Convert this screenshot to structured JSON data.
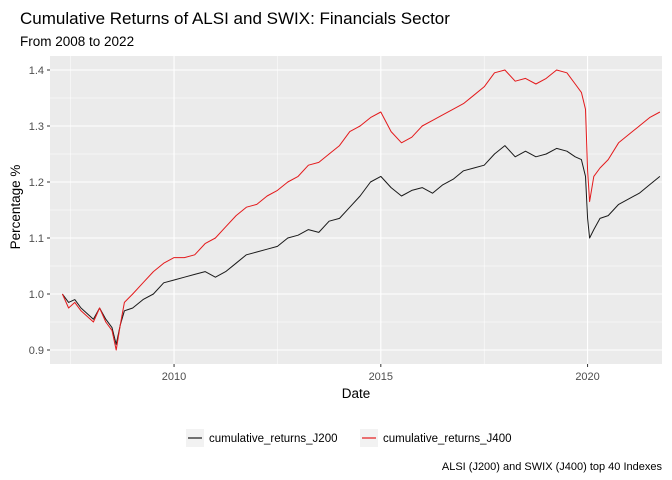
{
  "chart_data": {
    "type": "line",
    "title": "Cumulative Returns of ALSI and SWIX: Financials Sector",
    "subtitle": "From 2008 to 2022",
    "xlabel": "Date",
    "ylabel": "Percentage %",
    "caption": "ALSI (J200) and SWIX (J400) top 40 Indexes",
    "x_ticks": [
      2010,
      2015,
      2020
    ],
    "y_ticks": [
      0.9,
      1.0,
      1.1,
      1.2,
      1.3,
      1.4
    ],
    "xlim": [
      2007.0,
      2021.8
    ],
    "ylim": [
      0.875,
      1.425
    ],
    "grid": true,
    "legend_position": "bottom",
    "colors": {
      "panel": "#ebebeb",
      "grid": "#ffffff",
      "J200": "#1a1a1a",
      "J400": "#e41a1c"
    },
    "series": [
      {
        "name": "cumulative_returns_J200",
        "color": "#1a1a1a",
        "x": [
          2007.3,
          2007.45,
          2007.6,
          2007.75,
          2007.9,
          2008.05,
          2008.2,
          2008.35,
          2008.5,
          2008.6,
          2008.7,
          2008.8,
          2009.0,
          2009.25,
          2009.5,
          2009.75,
          2010.0,
          2010.25,
          2010.5,
          2010.75,
          2011.0,
          2011.25,
          2011.5,
          2011.75,
          2012.0,
          2012.25,
          2012.5,
          2012.75,
          2013.0,
          2013.25,
          2013.5,
          2013.75,
          2014.0,
          2014.25,
          2014.5,
          2014.75,
          2015.0,
          2015.25,
          2015.5,
          2015.75,
          2016.0,
          2016.25,
          2016.5,
          2016.75,
          2017.0,
          2017.25,
          2017.5,
          2017.75,
          2018.0,
          2018.25,
          2018.5,
          2018.75,
          2019.0,
          2019.25,
          2019.5,
          2019.7,
          2019.85,
          2019.95,
          2020.0,
          2020.05,
          2020.15,
          2020.3,
          2020.5,
          2020.75,
          2021.0,
          2021.25,
          2021.5,
          2021.75
        ],
        "y": [
          1.0,
          0.985,
          0.99,
          0.975,
          0.965,
          0.955,
          0.975,
          0.955,
          0.94,
          0.91,
          0.945,
          0.97,
          0.975,
          0.99,
          1.0,
          1.02,
          1.025,
          1.03,
          1.035,
          1.04,
          1.03,
          1.04,
          1.055,
          1.07,
          1.075,
          1.08,
          1.085,
          1.1,
          1.105,
          1.115,
          1.11,
          1.13,
          1.135,
          1.155,
          1.175,
          1.2,
          1.21,
          1.19,
          1.175,
          1.185,
          1.19,
          1.18,
          1.195,
          1.205,
          1.22,
          1.225,
          1.23,
          1.25,
          1.265,
          1.245,
          1.255,
          1.245,
          1.25,
          1.26,
          1.255,
          1.245,
          1.24,
          1.21,
          1.135,
          1.1,
          1.115,
          1.135,
          1.14,
          1.16,
          1.17,
          1.18,
          1.195,
          1.21
        ]
      },
      {
        "name": "cumulative_returns_J400",
        "color": "#e41a1c",
        "x": [
          2007.3,
          2007.45,
          2007.6,
          2007.75,
          2007.9,
          2008.05,
          2008.2,
          2008.35,
          2008.5,
          2008.6,
          2008.7,
          2008.8,
          2009.0,
          2009.25,
          2009.5,
          2009.75,
          2010.0,
          2010.25,
          2010.5,
          2010.75,
          2011.0,
          2011.25,
          2011.5,
          2011.75,
          2012.0,
          2012.25,
          2012.5,
          2012.75,
          2013.0,
          2013.25,
          2013.5,
          2013.75,
          2014.0,
          2014.25,
          2014.5,
          2014.75,
          2015.0,
          2015.25,
          2015.5,
          2015.75,
          2016.0,
          2016.25,
          2016.5,
          2016.75,
          2017.0,
          2017.25,
          2017.5,
          2017.75,
          2018.0,
          2018.25,
          2018.5,
          2018.75,
          2019.0,
          2019.25,
          2019.5,
          2019.7,
          2019.85,
          2019.95,
          2020.0,
          2020.05,
          2020.15,
          2020.3,
          2020.5,
          2020.75,
          2021.0,
          2021.25,
          2021.5,
          2021.75
        ],
        "y": [
          1.0,
          0.975,
          0.985,
          0.97,
          0.96,
          0.95,
          0.975,
          0.95,
          0.935,
          0.9,
          0.945,
          0.985,
          1.0,
          1.02,
          1.04,
          1.055,
          1.065,
          1.065,
          1.07,
          1.09,
          1.1,
          1.12,
          1.14,
          1.155,
          1.16,
          1.175,
          1.185,
          1.2,
          1.21,
          1.23,
          1.235,
          1.25,
          1.265,
          1.29,
          1.3,
          1.315,
          1.325,
          1.29,
          1.27,
          1.28,
          1.3,
          1.31,
          1.32,
          1.33,
          1.34,
          1.355,
          1.37,
          1.395,
          1.4,
          1.38,
          1.385,
          1.375,
          1.385,
          1.4,
          1.395,
          1.375,
          1.36,
          1.33,
          1.22,
          1.165,
          1.21,
          1.225,
          1.24,
          1.27,
          1.285,
          1.3,
          1.315,
          1.325
        ]
      }
    ]
  }
}
